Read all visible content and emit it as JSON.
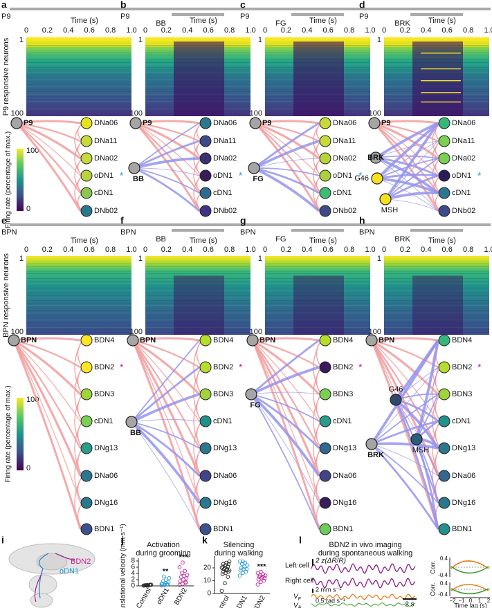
{
  "rows": [
    {
      "y_label": "P9 responsive neurons",
      "y_ticks": [
        "1",
        "100"
      ],
      "x_label": "Time (s)",
      "x_ticks": [
        "0",
        "0.2",
        "0.4",
        "0.6",
        "0.8",
        "1.0"
      ],
      "nodes": [
        "DNa06",
        "DNa11",
        "DNa02",
        "oDN1",
        "cDN1",
        "DNb02"
      ],
      "marked_node": 3,
      "marker": "*",
      "marker_color": "#1f9ad6",
      "colorbar": {
        "max": "100",
        "min": "0",
        "label": "Firing rate (percentage of max.)"
      },
      "panels": [
        {
          "letter": "a",
          "stimuli": [
            "P9"
          ],
          "inputs": [
            "P9"
          ],
          "node_colors": [
            "#e6e419",
            "#c8d93a",
            "#c8d93a",
            "#b8d43c",
            "#8cc653",
            "#2a788e"
          ]
        },
        {
          "letter": "b",
          "stimuli": [
            "P9",
            "BB"
          ],
          "inputs": [
            "P9",
            "BB"
          ],
          "node_colors": [
            "#2a788e",
            "#3e4a89",
            "#3b2f6e",
            "#3b1c5a",
            "#2f6b8e",
            "#3e3285"
          ]
        },
        {
          "letter": "c",
          "stimuli": [
            "P9",
            "FG"
          ],
          "inputs": [
            "P9",
            "FG"
          ],
          "node_colors": [
            "#c8d93a",
            "#c8d93a",
            "#b8d43c",
            "#a8d142",
            "#3fbc73",
            "#3e4a89"
          ]
        },
        {
          "letter": "d",
          "stimuli": [
            "P9",
            "BRK"
          ],
          "inputs": [
            "P9",
            "BRK",
            "G46",
            "MSH"
          ],
          "node_colors": [
            "#35b779",
            "#7ad151",
            "#7ad151",
            "#2b1d58",
            "#2a788e",
            "#3e4a89"
          ]
        }
      ]
    },
    {
      "y_label": "BPN responsive neurons",
      "y_ticks": [
        "1",
        "100"
      ],
      "x_label": "Time (s)",
      "x_ticks": [
        "0",
        "0.2",
        "0.4",
        "0.6",
        "0.8",
        "1.0"
      ],
      "nodes": [
        "BDN4",
        "BDN2",
        "BDN3",
        "cDN1",
        "DNg13",
        "DNa06",
        "DNg16",
        "BDN1"
      ],
      "marked_node": 1,
      "marker": "*",
      "marker_color": "#c0249a",
      "colorbar": {
        "max": "100",
        "min": "0",
        "label": "Firing rate (percentage of max.)"
      },
      "panels": [
        {
          "letter": "e",
          "stimuli": [
            "BPN"
          ],
          "inputs": [
            "BPN"
          ],
          "node_colors": [
            "#fde725",
            "#fde725",
            "#9fd53a",
            "#7ad151",
            "#2a9d8c",
            "#2a788e",
            "#2a788e",
            "#3b528b"
          ]
        },
        {
          "letter": "f",
          "stimuli": [
            "BPN",
            "BB"
          ],
          "inputs": [
            "BPN",
            "BB"
          ],
          "node_colors": [
            "#b5de2b",
            "#b5de2b",
            "#9fd53a",
            "#21918c",
            "#2a788e",
            "#414487",
            "#2a788e",
            "#3b528b"
          ]
        },
        {
          "letter": "g",
          "stimuli": [
            "BPN",
            "FG"
          ],
          "inputs": [
            "BPN",
            "FG"
          ],
          "node_colors": [
            "#b5de2b",
            "#3b1c5a",
            "#7ad151",
            "#2a9d8c",
            "#31688e",
            "#414487",
            "#3b1c5a",
            "#6ccd5a"
          ]
        },
        {
          "letter": "h",
          "stimuli": [
            "BPN",
            "BRK"
          ],
          "inputs": [
            "BPN",
            "G46",
            "BRK",
            "MSH"
          ],
          "node_colors": [
            "#35b779",
            "#b5de2b",
            "#9fd53a",
            "#21918c",
            "#2a788e",
            "#31688e",
            "#2a788e",
            "#21918c"
          ]
        }
      ]
    }
  ],
  "panel_i": {
    "letter": "i",
    "labels": [
      "BDN2",
      "oDN1"
    ]
  },
  "panel_j": {
    "letter": "j",
    "title": [
      "Activation",
      "during grooming"
    ],
    "y_label": "Translational velocity (mm s⁻¹)",
    "categories": [
      "Control",
      "oDN1",
      "BDN2"
    ],
    "colors": [
      "#222222",
      "#1f9ad6",
      "#c0249a"
    ],
    "ylim": [
      0,
      8
    ],
    "yticks": [
      0,
      2,
      4,
      6,
      8
    ],
    "significance": [
      null,
      "**",
      "***"
    ],
    "values": [
      [
        0.1,
        0.2,
        0.3,
        0.15,
        0.25,
        0.4,
        0.2,
        0.1,
        0.35,
        0.2
      ],
      [
        0.1,
        0.3,
        0.5,
        0.7,
        0.9,
        1.2,
        1.5,
        2.0,
        2.5,
        3.0,
        0.4,
        0.6
      ],
      [
        0.3,
        0.6,
        1.0,
        1.5,
        2.0,
        2.4,
        2.8,
        3.2,
        3.5,
        4.2,
        4.8,
        6.0,
        7.5,
        1.2
      ]
    ]
  },
  "panel_k": {
    "letter": "k",
    "title": [
      "Silencing",
      "during walking"
    ],
    "categories": [
      "Control",
      "oDN1",
      "BDN2"
    ],
    "colors": [
      "#222222",
      "#1f9ad6",
      "#c0249a"
    ],
    "ylim": [
      0,
      27
    ],
    "yticks": [
      0,
      10,
      20
    ],
    "significance": [
      null,
      null,
      "***"
    ],
    "values": [
      [
        2,
        8,
        13,
        15,
        16,
        17,
        17,
        18,
        18,
        19,
        19,
        20,
        20,
        21,
        21,
        22,
        23,
        23,
        24,
        25
      ],
      [
        14,
        16,
        17,
        18,
        19,
        19,
        20,
        21,
        22,
        23,
        24,
        25,
        25
      ],
      [
        7,
        9,
        10,
        11,
        12,
        12,
        13,
        13,
        14,
        14,
        15,
        16,
        17
      ]
    ]
  },
  "panel_l": {
    "letter": "l",
    "title": [
      "BDN2 in vivo imaging",
      "during spontaneous walking"
    ],
    "scale_imaging": "2 z(ΔR/R)",
    "traces": [
      "Left cell",
      "Right cell",
      "V",
      "V"
    ],
    "trace_subscripts": [
      "F",
      "A"
    ],
    "scale_vf": "2 mm s⁻¹",
    "scale_va": "0.5 rad s⁻¹",
    "scale_time": "2 s",
    "corr_label": "Corr.",
    "corr_ticks": [
      "0.4",
      "-0.4"
    ],
    "lag_label": "Time lag (s)",
    "lag_ticks": [
      "−2",
      "−1",
      "0",
      "1",
      "2"
    ]
  }
}
